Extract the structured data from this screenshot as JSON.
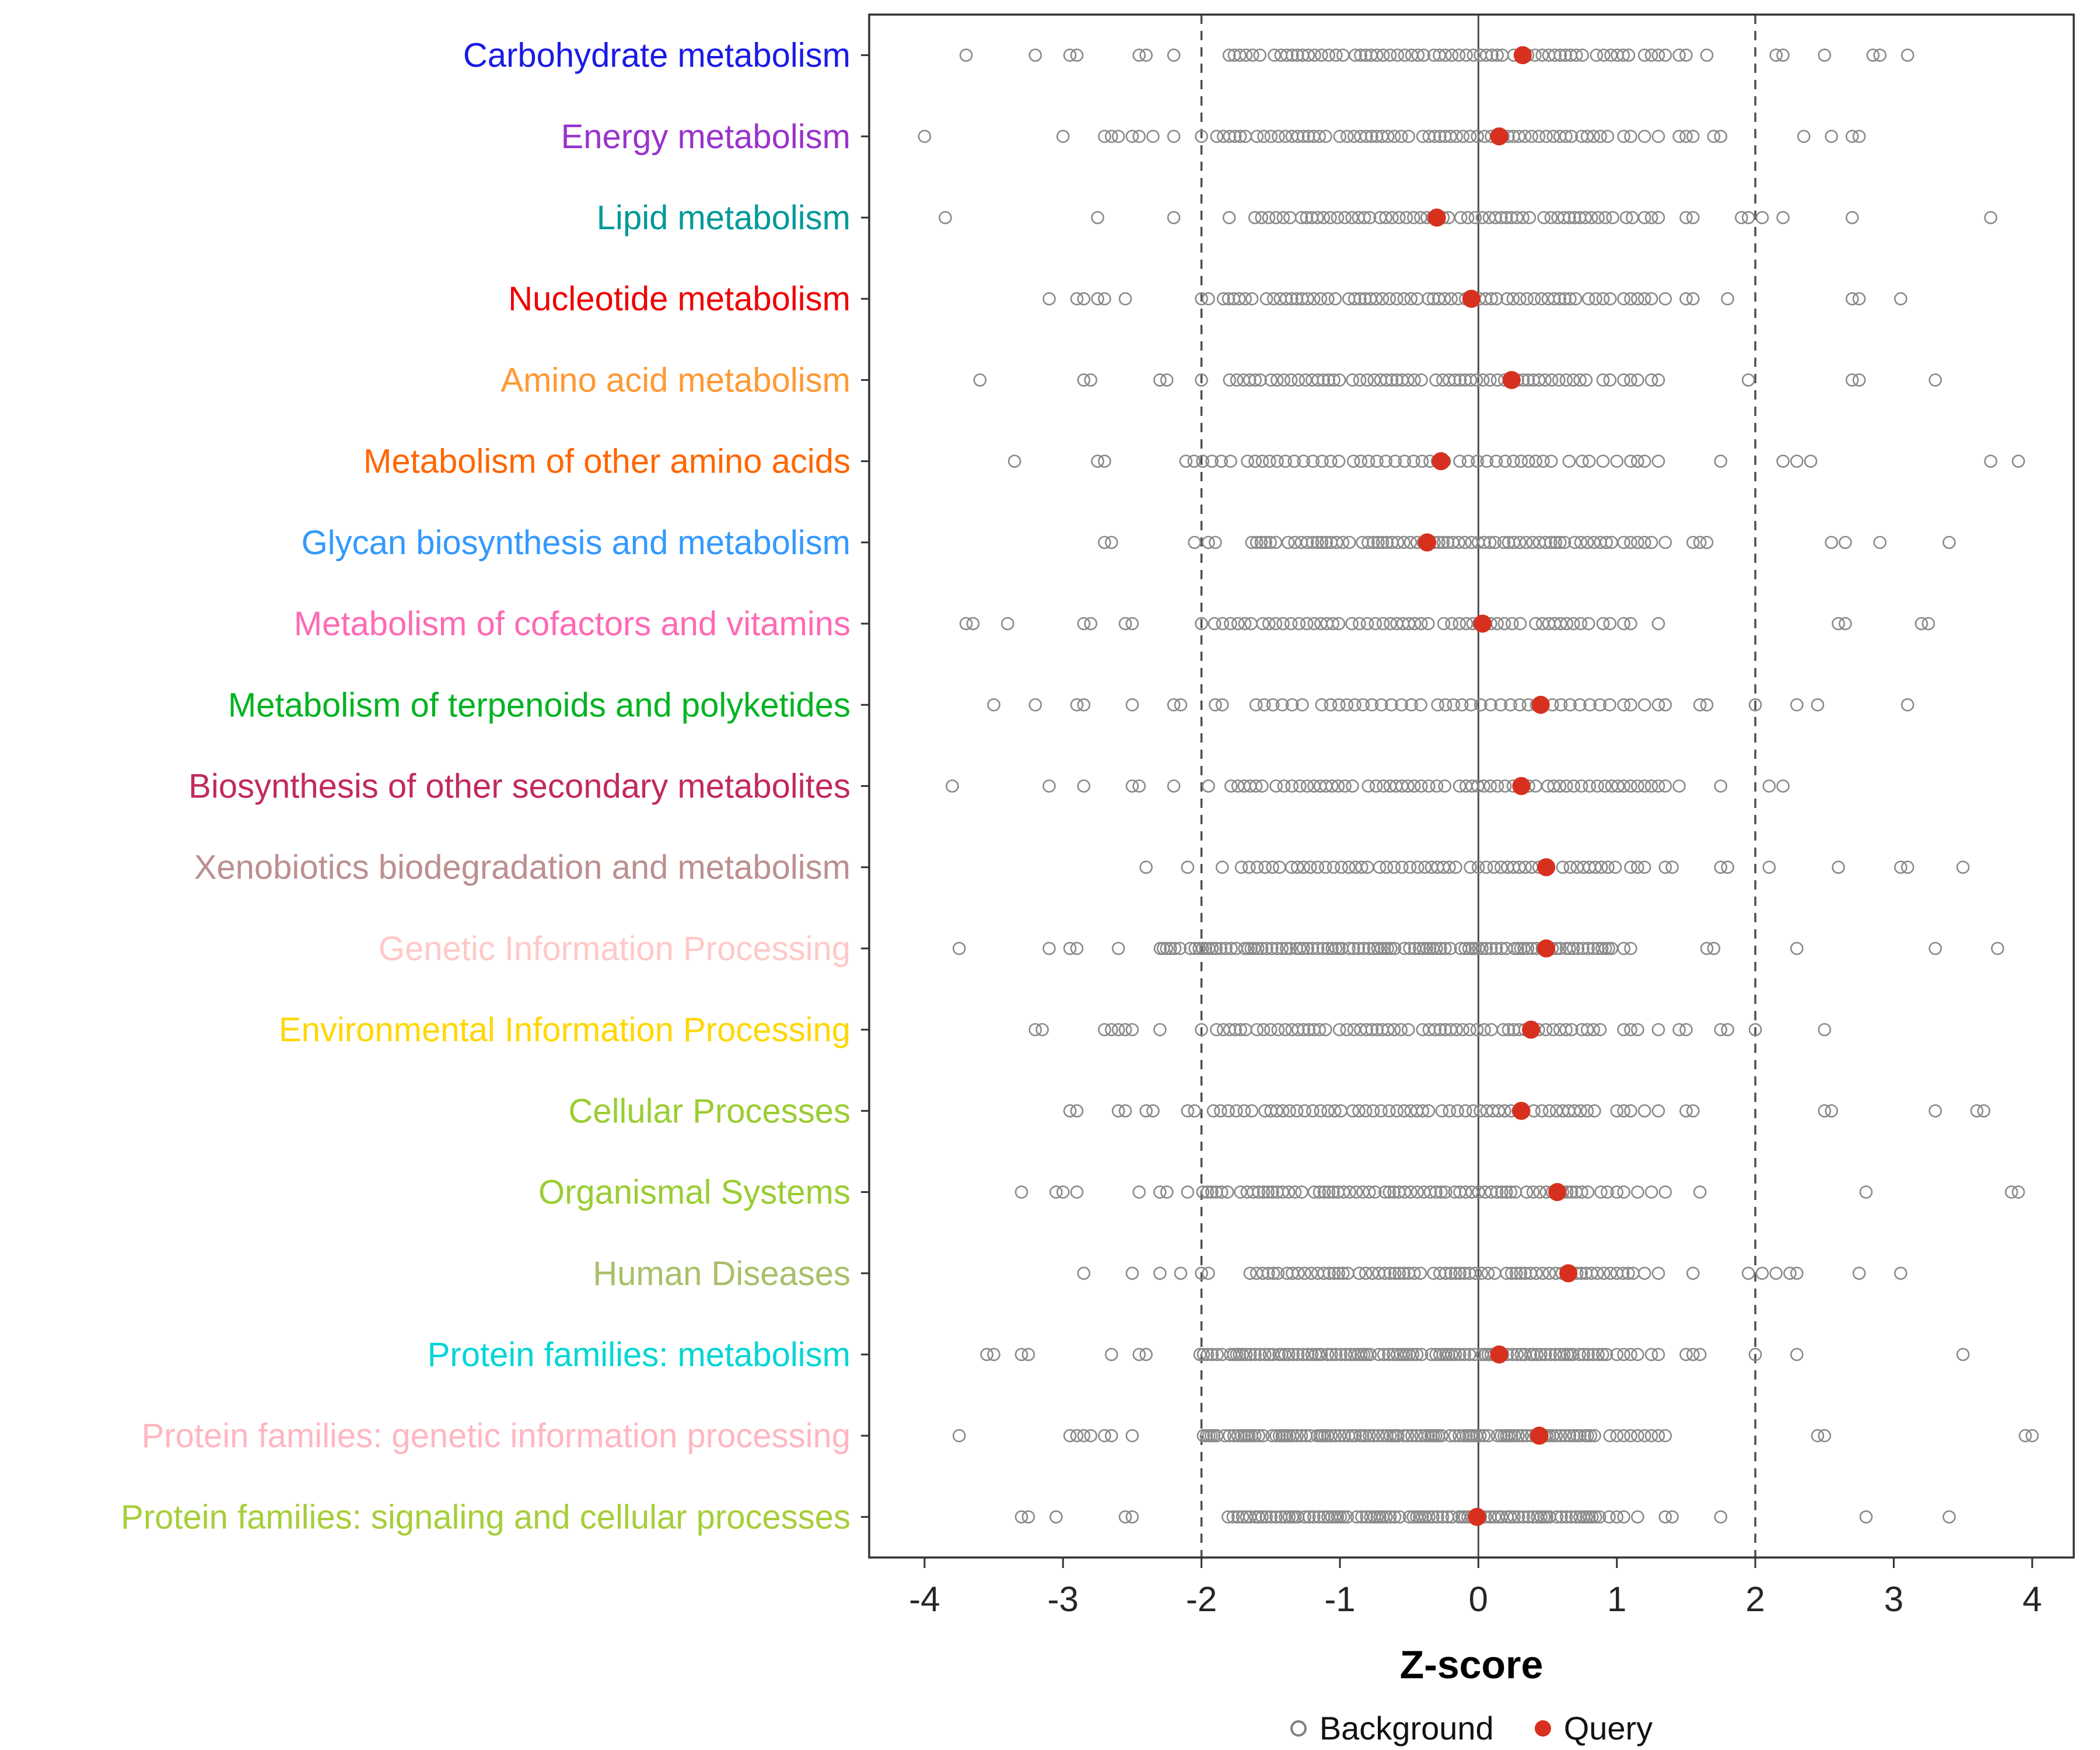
{
  "axis": {
    "xlabel": "Z-score"
  },
  "legend": {
    "background_label": "Background",
    "query_label": "Query",
    "background_color": "#808080",
    "query_color": "#D7301F"
  },
  "chart_data": {
    "type": "scatter",
    "title": "",
    "xlabel": "Z-score",
    "ylabel": "",
    "x_ticks": [
      -4,
      -3,
      -2,
      -1,
      0,
      1,
      2,
      3,
      4
    ],
    "x_domain": [
      -4.4,
      4.3
    ],
    "ref_lines": {
      "solid": [
        0
      ],
      "dashed": [
        -2,
        2
      ]
    },
    "grid": false,
    "legend_position": "bottom",
    "point_colors": {
      "background": "#8A8A8A",
      "query": "#D7301F"
    },
    "categories": [
      {
        "label": "Carbohydrate metabolism",
        "color": "#1A1AE6",
        "query": 0.32,
        "band": [
          -1.8,
          1.1
        ],
        "step": 0.045,
        "points": [
          -3.7,
          -3.2,
          -2.95,
          -2.9,
          -2.45,
          -2.4,
          -2.2,
          1.2,
          1.25,
          1.3,
          1.35,
          1.45,
          1.5,
          1.65,
          2.15,
          2.2,
          2.5,
          2.85,
          2.9,
          3.1
        ]
      },
      {
        "label": "Energy metabolism",
        "color": "#9933CC",
        "query": 0.15,
        "band": [
          -1.9,
          0.95
        ],
        "step": 0.045,
        "points": [
          -4.0,
          -3.0,
          -2.7,
          -2.65,
          -2.6,
          -2.5,
          -2.45,
          -2.35,
          -2.2,
          -2.0,
          1.05,
          1.1,
          1.2,
          1.3,
          1.45,
          1.5,
          1.55,
          1.7,
          1.75,
          2.35,
          2.55,
          2.7,
          2.75
        ]
      },
      {
        "label": "Lipid metabolism",
        "color": "#009999",
        "query": -0.3,
        "band": [
          -1.6,
          1.1
        ],
        "step": 0.045,
        "points": [
          -3.85,
          -2.75,
          -2.2,
          -1.8,
          1.2,
          1.25,
          1.3,
          1.5,
          1.55,
          1.9,
          1.95,
          2.05,
          2.2,
          2.7,
          3.7
        ]
      },
      {
        "label": "Nucleotide metabolism",
        "color": "#EE0000",
        "query": -0.05,
        "band": [
          -1.85,
          0.95
        ],
        "step": 0.045,
        "points": [
          -3.1,
          -2.9,
          -2.85,
          -2.75,
          -2.7,
          -2.55,
          -2.0,
          -1.95,
          1.05,
          1.1,
          1.15,
          1.2,
          1.25,
          1.35,
          1.5,
          1.55,
          1.8,
          2.7,
          2.75,
          3.05
        ]
      },
      {
        "label": "Amino acid metabolism",
        "color": "#FF9933",
        "query": 0.24,
        "band": [
          -1.8,
          0.8
        ],
        "step": 0.045,
        "points": [
          -3.6,
          -2.85,
          -2.8,
          -2.3,
          -2.25,
          -2.0,
          0.9,
          0.95,
          1.05,
          1.1,
          1.15,
          1.25,
          1.3,
          1.95,
          2.7,
          2.75,
          3.3
        ]
      },
      {
        "label": "Metabolism of other amino acids",
        "color": "#FF6600",
        "query": -0.27,
        "band": [
          -2.1,
          0.65
        ],
        "step": 0.06,
        "points": [
          -3.35,
          -2.75,
          -2.7,
          0.75,
          0.8,
          0.9,
          1.0,
          1.1,
          1.15,
          1.2,
          1.3,
          1.75,
          2.2,
          2.3,
          2.4,
          3.7,
          3.9
        ]
      },
      {
        "label": "Glycan biosynthesis and metabolism",
        "color": "#3399FF",
        "query": -0.37,
        "band": [
          -1.65,
          0.95
        ],
        "step": 0.04,
        "points": [
          -2.7,
          -2.65,
          -2.05,
          -1.95,
          -1.9,
          1.05,
          1.1,
          1.15,
          1.2,
          1.25,
          1.35,
          1.55,
          1.6,
          1.65,
          2.55,
          2.65,
          2.9,
          3.4
        ]
      },
      {
        "label": "Metabolism of cofactors and vitamins",
        "color": "#FF69B4",
        "query": 0.03,
        "band": [
          -1.9,
          0.8
        ],
        "step": 0.05,
        "points": [
          -3.7,
          -3.65,
          -3.4,
          -2.85,
          -2.8,
          -2.55,
          -2.5,
          -2.0,
          0.9,
          0.95,
          1.05,
          1.1,
          1.3,
          2.6,
          2.65,
          3.2,
          3.25
        ]
      },
      {
        "label": "Metabolism of terpenoids and polyketides",
        "color": "#00B321",
        "query": 0.45,
        "band": [
          -1.6,
          0.95
        ],
        "step": 0.065,
        "points": [
          -3.5,
          -3.2,
          -2.9,
          -2.85,
          -2.5,
          -2.2,
          -2.15,
          -1.9,
          -1.85,
          1.05,
          1.1,
          1.2,
          1.3,
          1.35,
          1.6,
          1.65,
          2.0,
          2.3,
          2.45,
          3.1
        ]
      },
      {
        "label": "Biosynthesis of other secondary metabolites",
        "color": "#C22A5B",
        "query": 0.31,
        "band": [
          -1.8,
          1.05
        ],
        "step": 0.05,
        "points": [
          -3.8,
          -3.1,
          -2.85,
          -2.5,
          -2.45,
          -2.2,
          -1.95,
          1.1,
          1.15,
          1.2,
          1.25,
          1.3,
          1.35,
          1.45,
          1.75,
          2.1,
          2.2
        ]
      },
      {
        "label": "Xenobiotics biodegradation and metabolism",
        "color": "#BC8F8F",
        "query": 0.49,
        "band": [
          -1.7,
          1.0
        ],
        "step": 0.05,
        "points": [
          -2.4,
          -2.1,
          -1.85,
          1.1,
          1.15,
          1.2,
          1.35,
          1.4,
          1.75,
          1.8,
          2.1,
          2.6,
          3.05,
          3.1,
          3.5
        ]
      },
      {
        "label": "Genetic Information Processing",
        "color": "#FFC8C8",
        "query": 0.49,
        "band": [
          -2.3,
          1.0
        ],
        "step": 0.03,
        "points": [
          -3.75,
          -3.1,
          -2.95,
          -2.9,
          -2.6,
          1.05,
          1.1,
          1.65,
          1.7,
          2.3,
          3.3,
          3.75
        ]
      },
      {
        "label": "Environmental Information Processing",
        "color": "#FFD700",
        "query": 0.38,
        "band": [
          -1.9,
          0.9
        ],
        "step": 0.045,
        "points": [
          -3.2,
          -3.15,
          -2.7,
          -2.65,
          -2.6,
          -2.55,
          -2.5,
          -2.3,
          -2.0,
          1.05,
          1.1,
          1.15,
          1.3,
          1.45,
          1.5,
          1.75,
          1.8,
          2.0,
          2.5
        ]
      },
      {
        "label": "Cellular Processes",
        "color": "#9ACD32",
        "query": 0.31,
        "band": [
          -1.9,
          0.85
        ],
        "step": 0.05,
        "points": [
          -2.95,
          -2.9,
          -2.6,
          -2.55,
          -2.4,
          -2.35,
          -2.1,
          -2.05,
          1.0,
          1.05,
          1.1,
          1.2,
          1.3,
          1.5,
          1.55,
          2.5,
          2.55,
          3.3,
          3.6,
          3.65
        ]
      },
      {
        "label": "Organismal Systems",
        "color": "#9ACD32",
        "query": 0.57,
        "band": [
          -2.0,
          0.9
        ],
        "step": 0.04,
        "points": [
          -3.3,
          -3.05,
          -3.0,
          -2.9,
          -2.45,
          -2.3,
          -2.25,
          -2.1,
          1.0,
          1.05,
          1.15,
          1.25,
          1.35,
          1.6,
          2.8,
          3.85,
          3.9
        ]
      },
      {
        "label": "Human Diseases",
        "color": "#A8BF68",
        "query": 0.65,
        "band": [
          -1.65,
          1.1
        ],
        "step": 0.04,
        "points": [
          -2.85,
          -2.5,
          -2.3,
          -2.15,
          -2.0,
          -1.95,
          1.2,
          1.3,
          1.55,
          1.95,
          2.05,
          2.15,
          2.25,
          2.3,
          2.75,
          3.05
        ]
      },
      {
        "label": "Protein families: metabolism",
        "color": "#00D5D5",
        "query": 0.15,
        "band": [
          -2.0,
          0.9
        ],
        "step": 0.028,
        "points": [
          -3.55,
          -3.5,
          -3.3,
          -3.25,
          -2.65,
          -2.45,
          -2.4,
          1.0,
          1.05,
          1.1,
          1.15,
          1.25,
          1.3,
          1.5,
          1.55,
          1.6,
          2.0,
          2.3,
          3.5
        ]
      },
      {
        "label": "Protein families: genetic information processing",
        "color": "#FFB6C1",
        "query": 0.44,
        "band": [
          -2.0,
          0.85
        ],
        "step": 0.025,
        "points": [
          -3.75,
          -2.95,
          -2.9,
          -2.85,
          -2.8,
          -2.7,
          -2.65,
          -2.5,
          0.95,
          1.0,
          1.05,
          1.1,
          1.15,
          1.2,
          1.25,
          1.3,
          1.35,
          2.45,
          2.5,
          3.95,
          4.0
        ]
      },
      {
        "label": "Protein families: signaling and cellular processes",
        "color": "#A6CE39",
        "query": -0.01,
        "band": [
          -1.8,
          0.95
        ],
        "step": 0.028,
        "points": [
          -3.3,
          -3.25,
          -3.05,
          -2.55,
          -2.5,
          1.0,
          1.05,
          1.15,
          1.35,
          1.4,
          1.75,
          2.8,
          3.4
        ]
      }
    ]
  }
}
